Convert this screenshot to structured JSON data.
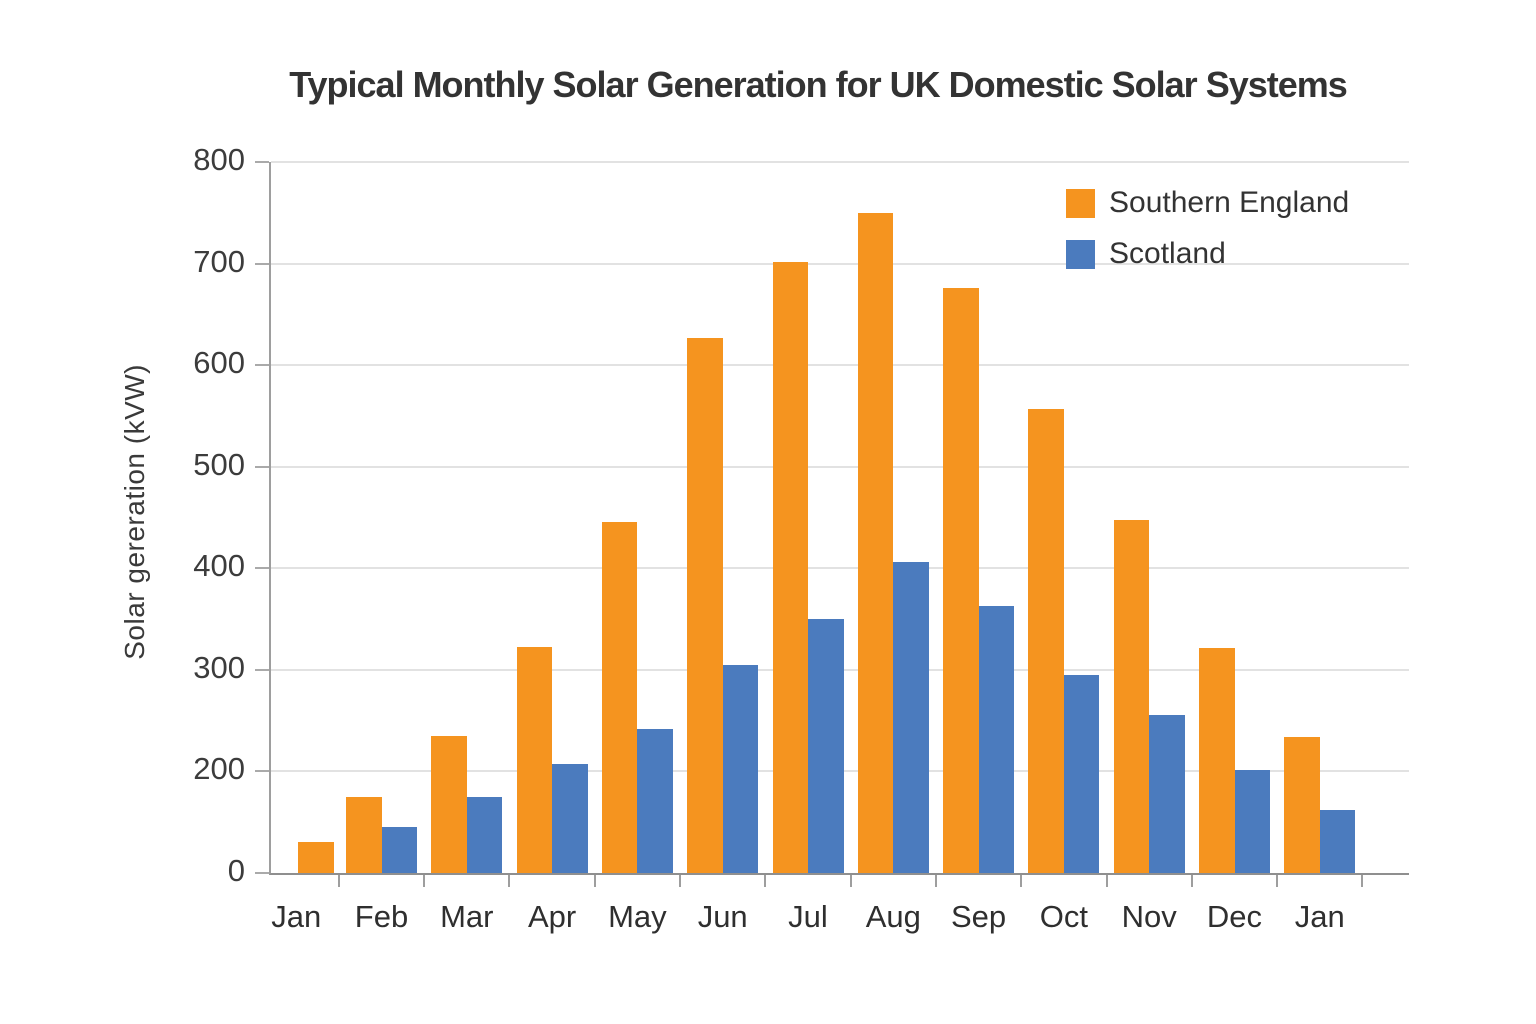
{
  "title": "Typical Monthly Solar Generation for UK Domestic Solar Systems",
  "y_axis": {
    "label": "Solar gereration (kVW)",
    "tick_labels": [
      "800",
      "700",
      "600",
      "500",
      "400",
      "300",
      "200",
      "0"
    ]
  },
  "x_axis": {
    "tick_labels": [
      "Jan",
      "Feb",
      "Mar",
      "Apr",
      "May",
      "Jun",
      "Jul",
      "Aug",
      "Sep",
      "Oct",
      "Nov",
      "Dec",
      "Jan"
    ]
  },
  "legend": {
    "items": [
      {
        "label": "Southern England",
        "color": "#F5941F"
      },
      {
        "label": "Scotland",
        "color": "#4B7BBE"
      }
    ]
  },
  "chart_data": {
    "type": "bar",
    "title": "Typical Monthly Solar Generation for UK Domestic Solar Systems",
    "categories": [
      "Jan",
      "Feb",
      "Mar",
      "Apr",
      "May",
      "Jun",
      "Jul",
      "Aug",
      "Sep",
      "Oct",
      "Nov",
      "Dec",
      "Jan"
    ],
    "series": [
      {
        "name": "Southern England",
        "color": "#F5941F",
        "values": [
          62,
          150,
          235,
          323,
          446,
          627,
          702,
          750,
          676,
          557,
          448,
          322,
          234
        ]
      },
      {
        "name": "Scotland",
        "color": "#4B7BBE",
        "values": [
          null,
          90,
          150,
          207,
          242,
          305,
          350,
          406,
          363,
          295,
          256,
          201,
          124
        ]
      }
    ],
    "xlabel": "",
    "ylabel": "Solar gereration (kVW)",
    "ylim": [
      0,
      800
    ],
    "yticks": [
      0,
      200,
      300,
      400,
      500,
      600,
      700,
      800
    ],
    "grid": true,
    "legend_position": "top-right",
    "axis_note": "y-axis ticks are evenly spaced but no 100 label is shown; the 0-200 segment spans a single tick step"
  }
}
